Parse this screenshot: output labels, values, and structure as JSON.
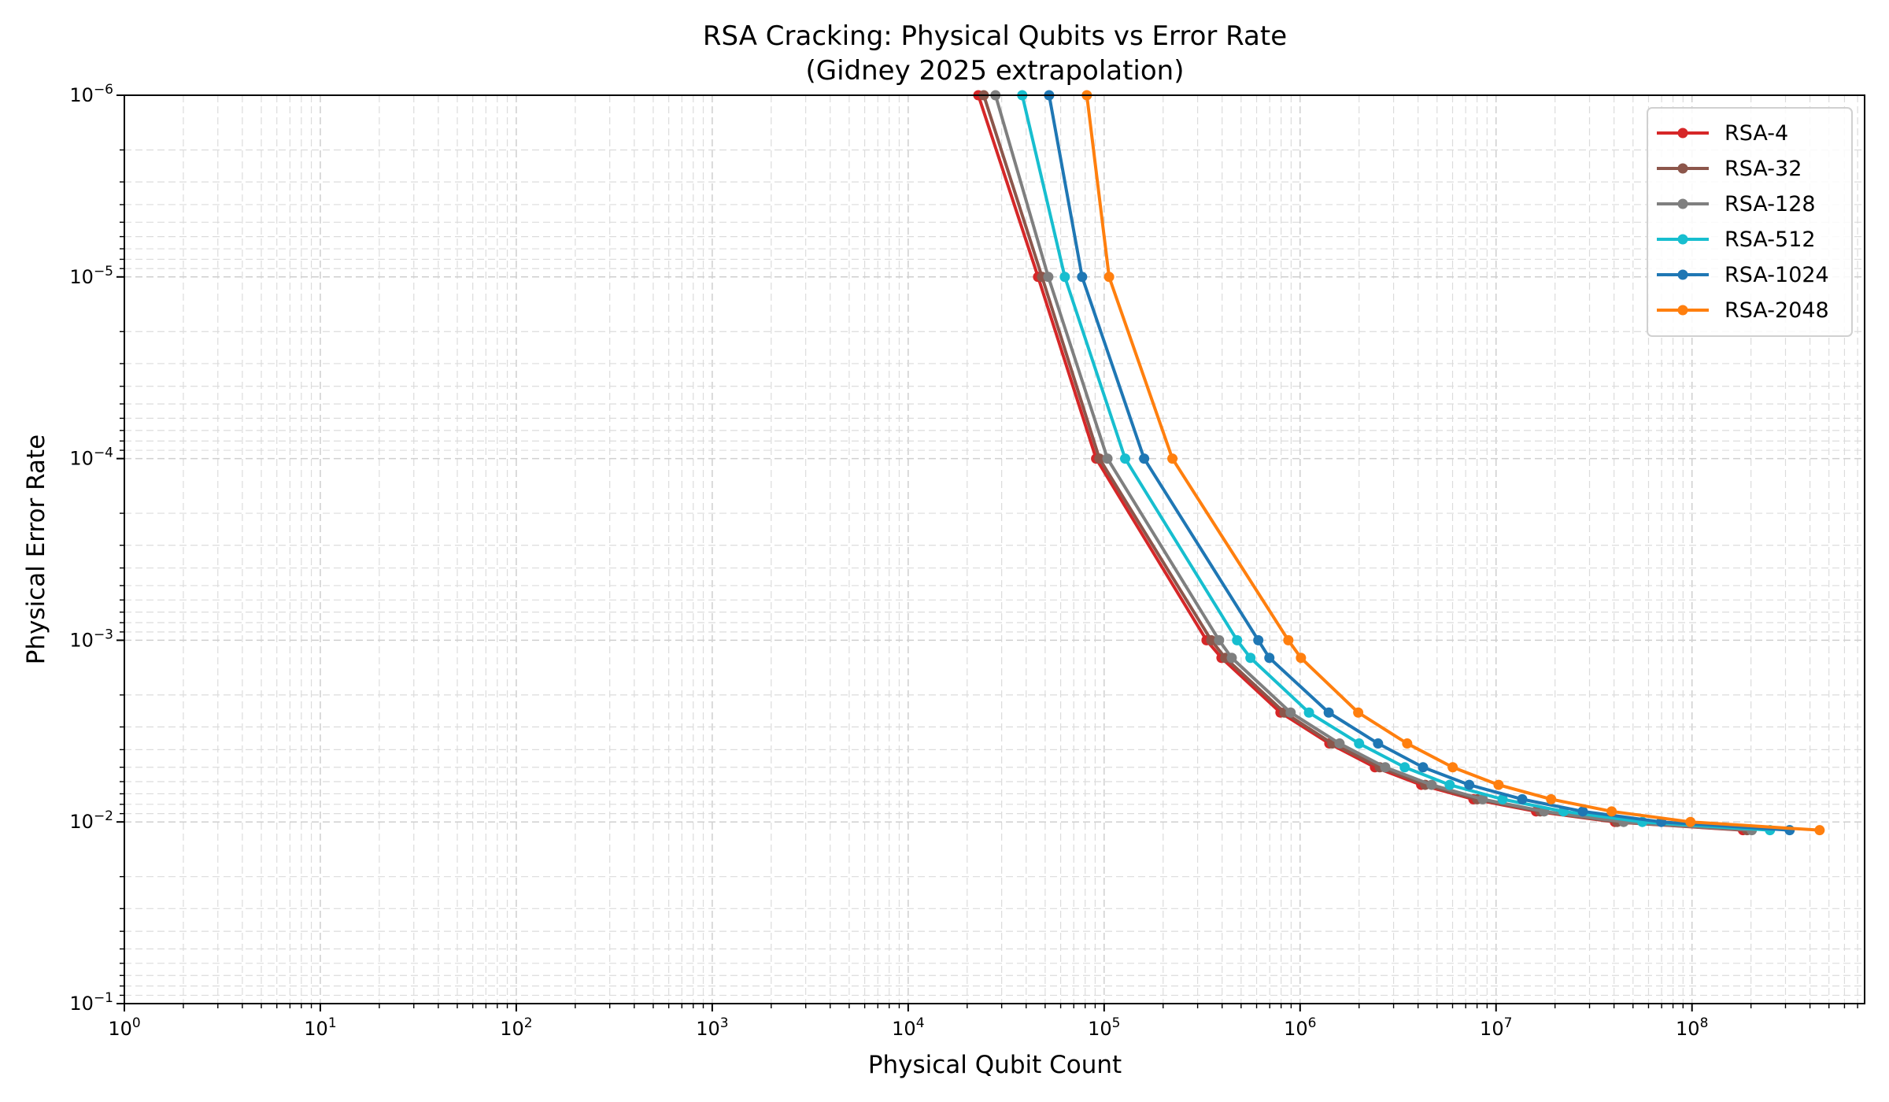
{
  "chart_data": {
    "type": "line",
    "title": "RSA Cracking: Physical Qubits vs Error Rate",
    "subtitle": "(Gidney 2025 extrapolation)",
    "xlabel": "Physical Qubit Count",
    "ylabel": "Physical Error Rate",
    "xscale": "log",
    "yscale": "log",
    "y_inverted": true,
    "xlim": [
      1,
      760000000
    ],
    "ylim": [
      1e-06,
      0.1
    ],
    "x_ticks": [
      {
        "base": "10",
        "exp": "0",
        "value": 1
      },
      {
        "base": "10",
        "exp": "1",
        "value": 10
      },
      {
        "base": "10",
        "exp": "2",
        "value": 100
      },
      {
        "base": "10",
        "exp": "3",
        "value": 1000
      },
      {
        "base": "10",
        "exp": "4",
        "value": 10000
      },
      {
        "base": "10",
        "exp": "5",
        "value": 100000
      },
      {
        "base": "10",
        "exp": "6",
        "value": 1000000
      },
      {
        "base": "10",
        "exp": "7",
        "value": 10000000
      },
      {
        "base": "10",
        "exp": "8",
        "value": 100000000
      }
    ],
    "y_ticks": [
      {
        "base": "10",
        "exp": "−6",
        "value": 1e-06
      },
      {
        "base": "10",
        "exp": "−5",
        "value": 1e-05
      },
      {
        "base": "10",
        "exp": "−4",
        "value": 0.0001
      },
      {
        "base": "10",
        "exp": "−3",
        "value": 0.001
      },
      {
        "base": "10",
        "exp": "−2",
        "value": 0.01
      },
      {
        "base": "10",
        "exp": "−1",
        "value": 0.1
      }
    ],
    "grid": true,
    "grid_which": "both",
    "legend_position": "top-right",
    "y": [
      1e-06,
      1e-05,
      0.0001,
      0.001,
      0.00125,
      0.0025,
      0.0037,
      0.005,
      0.00625,
      0.0075,
      0.00875,
      0.01,
      0.0111
    ],
    "series": [
      {
        "name": "RSA-4",
        "color": "#d62728",
        "x": [
          22800,
          46000,
          91000,
          333000,
          397000,
          794000,
          1410000,
          2410000,
          4150000,
          7660000,
          16000000,
          40400000,
          182000000
        ]
      },
      {
        "name": "RSA-32",
        "color": "#8c564b",
        "x": [
          24300,
          48200,
          94600,
          352000,
          415000,
          832000,
          1460000,
          2550000,
          4350000,
          8010000,
          16800000,
          41500000,
          191000000
        ]
      },
      {
        "name": "RSA-128",
        "color": "#7f7f7f",
        "x": [
          27900,
          51900,
          104000,
          386000,
          448000,
          895000,
          1590000,
          2720000,
          4690000,
          8550000,
          17600000,
          44800000,
          202000000
        ]
      },
      {
        "name": "RSA-512",
        "color": "#17becf",
        "x": [
          38200,
          63000,
          128000,
          477000,
          558000,
          1110000,
          2000000,
          3420000,
          5800000,
          10800000,
          22100000,
          55800000,
          250000000
        ]
      },
      {
        "name": "RSA-1024",
        "color": "#1f77b4",
        "x": [
          52400,
          77200,
          160000,
          612000,
          697000,
          1400000,
          2500000,
          4240000,
          7300000,
          13600000,
          27700000,
          69700000,
          315000000
        ]
      },
      {
        "name": "RSA-2048",
        "color": "#ff7f0e",
        "x": [
          81600,
          106000,
          223000,
          871000,
          1010000,
          1980000,
          3520000,
          6010000,
          10300000,
          19100000,
          38900000,
          98200000,
          448000000
        ]
      }
    ]
  }
}
